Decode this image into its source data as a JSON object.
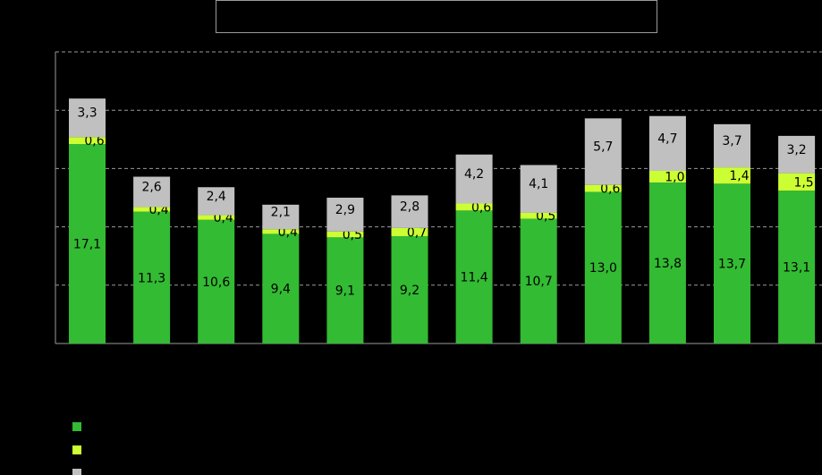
{
  "title": "",
  "colors": {
    "background": "#000000",
    "green": "#33bb33",
    "yellow": "#ccff33",
    "gray": "#c0c0c0",
    "grid": "#9a9a9a",
    "axis": "#9a9a9a"
  },
  "chart_data": {
    "type": "bar",
    "stacked": true,
    "categories": [
      "",
      "",
      "",
      "",
      "",
      "",
      "",
      "",
      "",
      "",
      "",
      ""
    ],
    "series": [
      {
        "color": "#33bb33",
        "values": [
          17.1,
          11.3,
          10.6,
          9.4,
          9.1,
          9.2,
          11.4,
          10.7,
          13.0,
          13.8,
          13.7,
          13.1
        ]
      },
      {
        "color": "#ccff33",
        "values": [
          0.6,
          0.4,
          0.4,
          0.4,
          0.5,
          0.7,
          0.6,
          0.5,
          0.6,
          1.0,
          1.4,
          1.5
        ]
      },
      {
        "color": "#c0c0c0",
        "values": [
          3.3,
          2.6,
          2.4,
          2.1,
          2.9,
          2.8,
          4.2,
          4.1,
          5.7,
          4.7,
          3.7,
          3.2
        ]
      }
    ],
    "labels": [
      [
        "17,1",
        "11,3",
        "10,6",
        "9,4",
        "9,1",
        "9,2",
        "11,4",
        "10,7",
        "13,0",
        "13,8",
        "13,7",
        "13,1"
      ],
      [
        "0,6",
        "0,4",
        "0,4",
        "0,4",
        "0,5",
        "0,7",
        "0,6",
        "0,5",
        "0,6",
        "1,0",
        "1,4",
        "1,5"
      ],
      [
        "3,3",
        "2,6",
        "2,4",
        "2,1",
        "2,9",
        "2,8",
        "4,2",
        "4,1",
        "5,7",
        "4,7",
        "3,7",
        "3,2"
      ]
    ],
    "ylim": [
      0,
      25
    ],
    "grid": true,
    "legend_position": "bottom-left",
    "xlabel": "",
    "ylabel": ""
  },
  "legend": {
    "items": [
      {
        "label": "",
        "color": "#33bb33"
      },
      {
        "label": "",
        "color": "#ccff33"
      },
      {
        "label": "",
        "color": "#c0c0c0"
      }
    ]
  }
}
